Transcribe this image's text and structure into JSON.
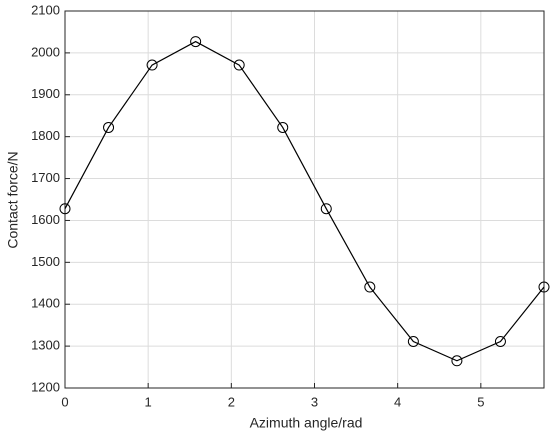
{
  "chart_data": {
    "type": "line",
    "xlabel": "Azimuth angle/rad",
    "ylabel": "Contact force/N",
    "x": [
      0,
      0.5236,
      1.0472,
      1.5708,
      2.0944,
      2.618,
      3.1416,
      3.6652,
      4.1888,
      4.7124,
      5.236,
      5.7596
    ],
    "series": [
      {
        "color": "#000000",
        "marker": "circle",
        "values": [
          1628,
          1822,
          1971,
          2027,
          1971,
          1822,
          1628,
          1441,
          1311,
          1265,
          1311,
          1441
        ]
      }
    ],
    "xlim": [
      0,
      5.7596
    ],
    "xticks": [
      0,
      1,
      2,
      3,
      4,
      5
    ],
    "ylim": [
      1200,
      2100
    ],
    "yticks": [
      1200,
      1300,
      1400,
      1500,
      1600,
      1700,
      1800,
      1900,
      2000,
      2100
    ],
    "grid": true
  }
}
